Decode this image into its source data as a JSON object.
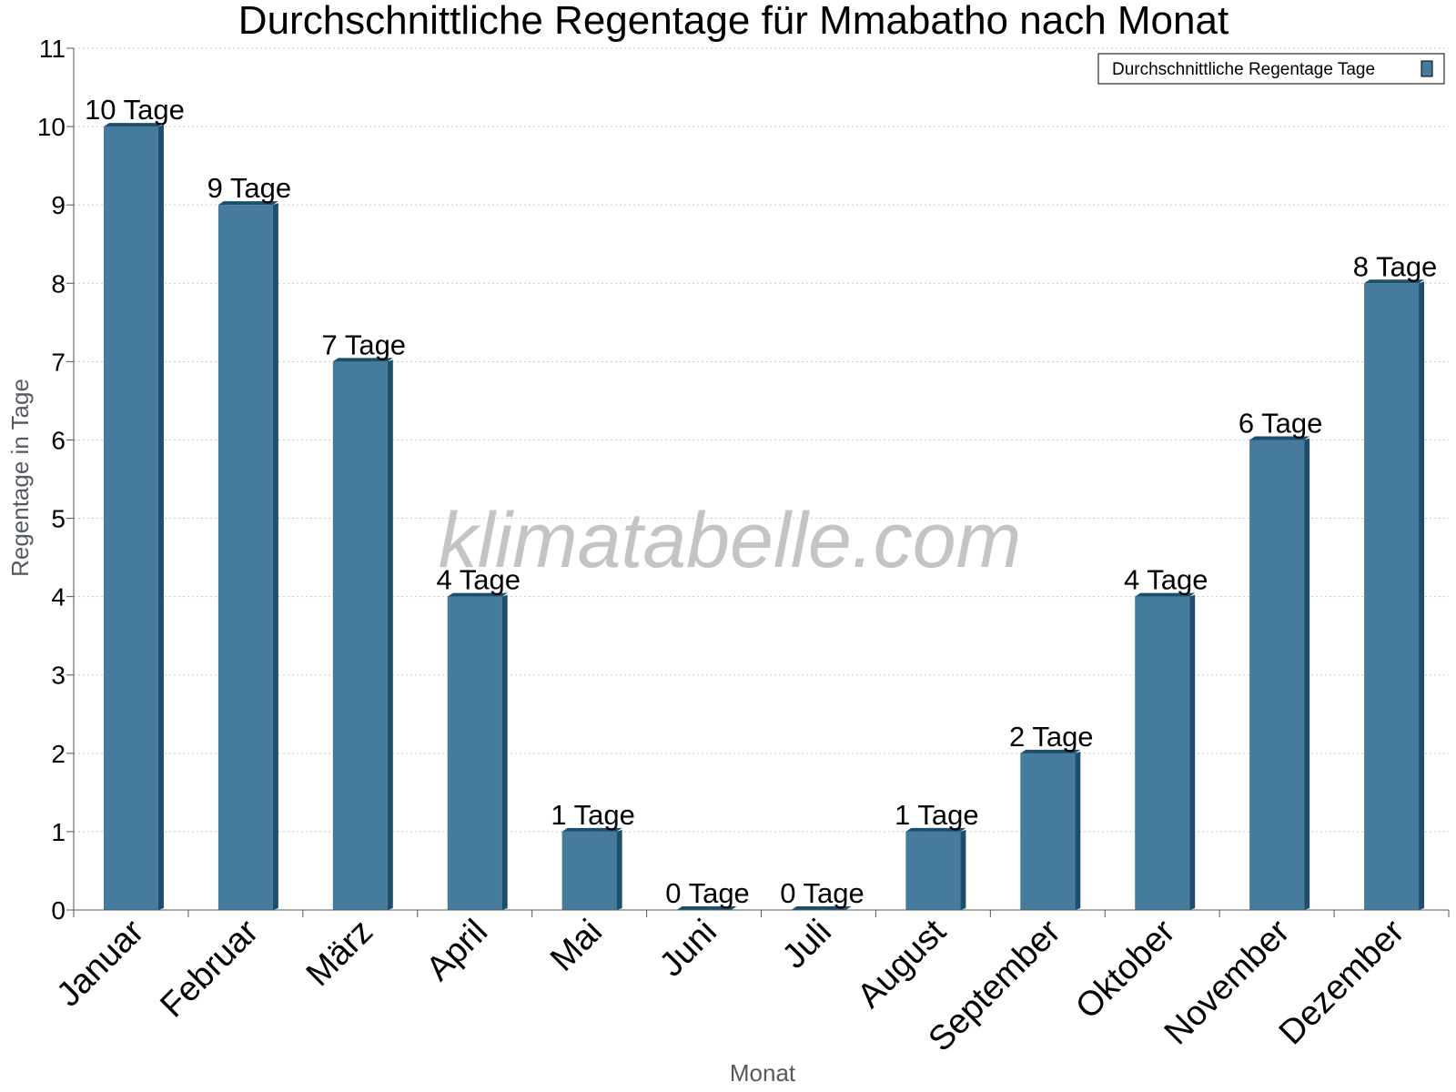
{
  "chart_data": {
    "type": "bar",
    "title": "Durchschnittliche Regentage für Mmabatho nach Monat",
    "xlabel": "Monat",
    "ylabel": "Regentage in Tage",
    "ylim": [
      0,
      11
    ],
    "yticks": [
      0,
      1,
      2,
      3,
      4,
      5,
      6,
      7,
      8,
      9,
      10,
      11
    ],
    "grid": true,
    "legend_position": "top-right",
    "categories": [
      "Januar",
      "Februar",
      "März",
      "April",
      "Mai",
      "Juni",
      "Juli",
      "August",
      "September",
      "Oktober",
      "November",
      "Dezember"
    ],
    "series": [
      {
        "name": "Durchschnittliche Regentage Tage",
        "values": [
          10,
          9,
          7,
          4,
          1,
          0,
          0,
          1,
          2,
          4,
          6,
          8
        ],
        "labels": [
          "10 Tage",
          "9 Tage",
          "7 Tage",
          "4 Tage",
          "1 Tage",
          "0 Tage",
          "0 Tage",
          "1 Tage",
          "2 Tage",
          "4 Tage",
          "6 Tage",
          "8 Tage"
        ]
      }
    ],
    "colors": {
      "bar": "#457b9d",
      "bar_side": "#1d4e6e",
      "grid": "#c8c8c8",
      "axis": "#555555"
    }
  },
  "watermark": "klimatabelle.com"
}
